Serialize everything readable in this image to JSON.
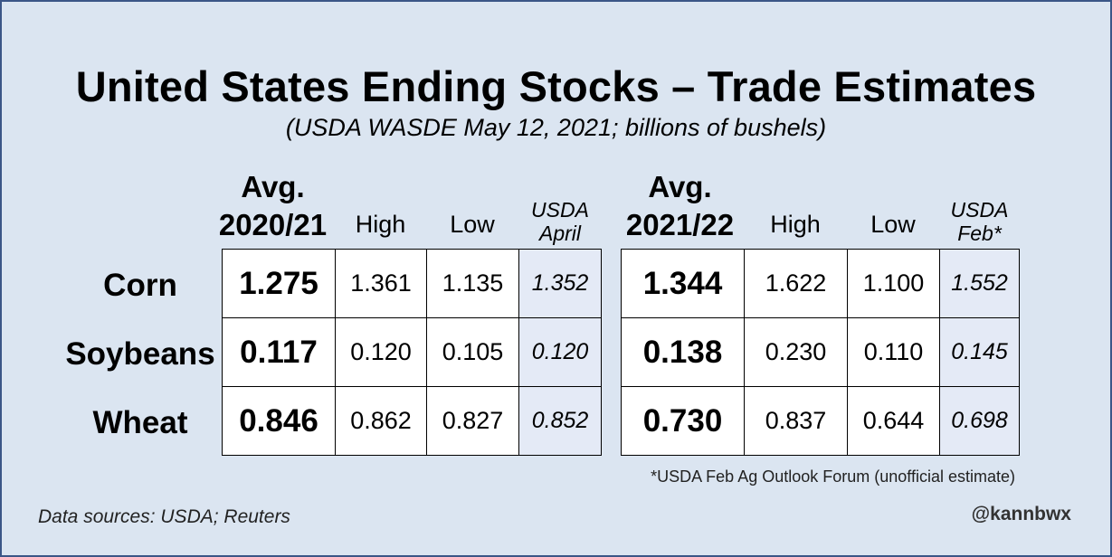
{
  "chart_data": {
    "type": "table",
    "title": "United States Ending Stocks – Trade Estimates",
    "subtitle": "(USDA WASDE May 12, 2021; billions of bushels)",
    "rows": [
      "Corn",
      "Soybeans",
      "Wheat"
    ],
    "panels": [
      {
        "avg_label": "Avg.",
        "year": "2020/21",
        "high_label": "High",
        "low_label": "Low",
        "usda_label_1": "USDA",
        "usda_label_2": "April",
        "values": [
          {
            "avg": "1.275",
            "high": "1.361",
            "low": "1.135",
            "usda": "1.352"
          },
          {
            "avg": "0.117",
            "high": "0.120",
            "low": "0.105",
            "usda": "0.120"
          },
          {
            "avg": "0.846",
            "high": "0.862",
            "low": "0.827",
            "usda": "0.852"
          }
        ]
      },
      {
        "avg_label": "Avg.",
        "year": "2021/22",
        "high_label": "High",
        "low_label": "Low",
        "usda_label_1": "USDA",
        "usda_label_2": "Feb*",
        "values": [
          {
            "avg": "1.344",
            "high": "1.622",
            "low": "1.100",
            "usda": "1.552"
          },
          {
            "avg": "0.138",
            "high": "0.230",
            "low": "0.110",
            "usda": "0.145"
          },
          {
            "avg": "0.730",
            "high": "0.837",
            "low": "0.644",
            "usda": "0.698"
          }
        ]
      }
    ],
    "footnote": "*USDA Feb Ag Outlook Forum (unofficial estimate)",
    "sources": "Data sources: USDA; Reuters",
    "handle": "@kannbwx"
  },
  "colors": {
    "background": "#dbe5f1",
    "border": "#3b5687",
    "usda_cell": "#e4eaf6"
  }
}
